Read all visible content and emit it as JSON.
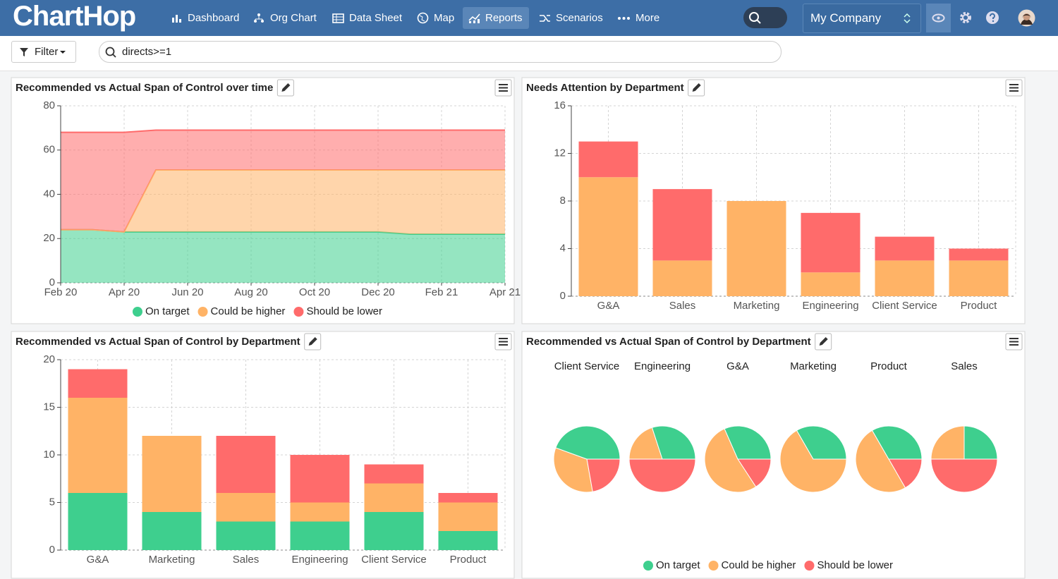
{
  "header": {
    "logo": "ChartHop",
    "nav": [
      "Dashboard",
      "Org Chart",
      "Data Sheet",
      "Map",
      "Reports",
      "Scenarios",
      "More"
    ],
    "company": "My Company"
  },
  "filter": {
    "button": "Filter",
    "query": "directs>=1"
  },
  "chart_data": [
    {
      "type": "area",
      "title": "Recommended vs Actual Span of Control over time",
      "x": [
        "Feb 20",
        null,
        "Apr 20",
        null,
        "Jun 20",
        null,
        "Aug 20",
        null,
        "Oct 20",
        null,
        "Dec 20",
        null,
        "Feb 21",
        null,
        "Apr 21"
      ],
      "series": [
        {
          "name": "On target",
          "color": "#3ecf8e",
          "values": [
            24,
            24,
            23,
            23,
            23,
            23,
            23,
            23,
            23,
            23,
            23,
            22,
            22,
            22,
            22
          ]
        },
        {
          "name": "Could be higher",
          "color": "#ffb366",
          "values": [
            0,
            0,
            0,
            28,
            28,
            28,
            28,
            28,
            28,
            28,
            28,
            29,
            29,
            29,
            29
          ]
        },
        {
          "name": "Should be lower",
          "color": "#ff6b6b",
          "values": [
            44,
            44,
            45,
            18,
            18,
            18,
            18,
            18,
            18,
            18,
            18,
            18,
            18,
            18,
            18
          ]
        }
      ],
      "stacked": true,
      "ylim": [
        0,
        80
      ],
      "yticks": [
        0,
        20,
        40,
        60,
        80
      ],
      "grid": true,
      "legend": "bottom"
    },
    {
      "type": "bar",
      "title": "Needs Attention by Department",
      "categories": [
        "G&A",
        "Sales",
        "Marketing",
        "Engineering",
        "Client Service",
        "Product"
      ],
      "series": [
        {
          "color": "#ffb366",
          "values": [
            10,
            3,
            8,
            2,
            3,
            3
          ]
        },
        {
          "color": "#ff6b6b",
          "values": [
            3,
            6,
            0,
            5,
            2,
            1
          ]
        }
      ],
      "stacked": true,
      "ylim": [
        0,
        16
      ],
      "yticks": [
        0,
        4,
        8,
        12,
        16
      ],
      "grid": true
    },
    {
      "type": "bar",
      "title": "Recommended vs Actual Span of Control by Department",
      "categories": [
        "G&A",
        "Marketing",
        "Sales",
        "Engineering",
        "Client Service",
        "Product"
      ],
      "series": [
        {
          "color": "#3ecf8e",
          "values": [
            6,
            4,
            3,
            3,
            4,
            2
          ]
        },
        {
          "color": "#ffb366",
          "values": [
            10,
            8,
            3,
            2,
            3,
            3
          ]
        },
        {
          "color": "#ff6b6b",
          "values": [
            3,
            0,
            6,
            5,
            2,
            1
          ]
        }
      ],
      "stacked": true,
      "ylim": [
        0,
        20
      ],
      "yticks": [
        0,
        5,
        10,
        15,
        20
      ],
      "grid": true
    },
    {
      "type": "pie",
      "title": "Recommended vs Actual Span of Control by Department",
      "categories": [
        "Client Service",
        "Engineering",
        "G&A",
        "Marketing",
        "Product",
        "Sales"
      ],
      "series": [
        {
          "name": "On target",
          "color": "#3ecf8e",
          "values": [
            4,
            3,
            6,
            4,
            2,
            3
          ]
        },
        {
          "name": "Could be higher",
          "color": "#ffb366",
          "values": [
            3,
            2,
            10,
            8,
            3,
            3
          ]
        },
        {
          "name": "Should be lower",
          "color": "#ff6b6b",
          "values": [
            2,
            5,
            3,
            0,
            1,
            6
          ]
        }
      ],
      "legend": "bottom"
    }
  ]
}
